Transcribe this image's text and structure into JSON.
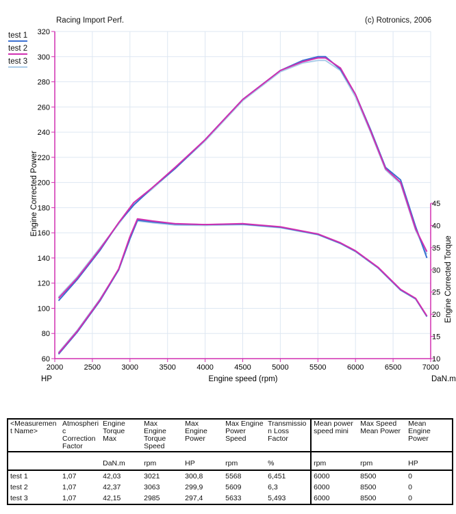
{
  "header": {
    "left": "Racing Import Perf.",
    "right": "(c) Rotronics, 2006"
  },
  "legend": [
    {
      "label": "test 1",
      "color": "#3a6fd1"
    },
    {
      "label": "test 2",
      "color": "#d12fb0"
    },
    {
      "label": "test 3",
      "color": "#a9cbe8"
    }
  ],
  "chart_data": {
    "type": "line",
    "xlabel": "Engine speed (rpm)",
    "ylabel": "Engine Corrected Power",
    "y2label": "Engine Corrected Torque",
    "left_unit": "HP",
    "right_unit": "DaN.m",
    "xlim": [
      2000,
      7000
    ],
    "ylim": [
      60,
      320
    ],
    "y2lim": [
      10,
      45
    ],
    "x_ticks": [
      "2000",
      "2500",
      "3000",
      "3500",
      "4000",
      "4500",
      "5000",
      "5500",
      "6000",
      "6500",
      "7000"
    ],
    "y_ticks": [
      "60",
      "80",
      "100",
      "120",
      "140",
      "160",
      "180",
      "200",
      "220",
      "240",
      "260",
      "280",
      "300",
      "320"
    ],
    "y2_ticks": [
      "10",
      "15",
      "20",
      "25",
      "30",
      "35",
      "40",
      "45"
    ],
    "grid": true,
    "power_series": [
      {
        "name": "test 1",
        "x": [
          2050,
          2300,
          2600,
          2850,
          3050,
          3300,
          3600,
          4000,
          4500,
          5000,
          5300,
          5500,
          5600,
          5800,
          6000,
          6200,
          6400,
          6600,
          6800,
          6950
        ],
        "y": [
          106,
          123,
          146,
          168,
          182,
          196,
          211,
          234,
          266,
          289,
          297,
          300,
          300,
          290,
          270,
          242,
          212,
          202,
          165,
          140
        ]
      },
      {
        "name": "test 2",
        "x": [
          2050,
          2300,
          2600,
          2850,
          3050,
          3300,
          3600,
          4000,
          4500,
          5000,
          5300,
          5500,
          5600,
          5800,
          6000,
          6200,
          6400,
          6600,
          6800,
          6950
        ],
        "y": [
          108,
          124,
          147,
          168,
          184,
          196,
          212,
          234,
          266,
          289,
          296,
          299,
          299,
          291,
          270,
          241,
          211,
          200,
          163,
          145
        ]
      },
      {
        "name": "test 3",
        "x": [
          2050,
          2300,
          2600,
          2850,
          3050,
          3300,
          3600,
          4000,
          4500,
          5000,
          5300,
          5500,
          5600,
          5800,
          6000,
          6200,
          6400,
          6600,
          6800,
          6950
        ],
        "y": [
          109,
          125,
          148,
          167,
          183,
          195,
          211,
          233,
          265,
          288,
          295,
          297,
          297,
          289,
          268,
          240,
          210,
          199,
          162,
          143
        ]
      }
    ],
    "torque_series": [
      {
        "name": "test 1",
        "x": [
          2050,
          2300,
          2600,
          2850,
          3000,
          3100,
          3300,
          3600,
          4000,
          4500,
          5000,
          5500,
          5800,
          6000,
          6300,
          6600,
          6800,
          6950
        ],
        "y": [
          11.0,
          16.0,
          23.0,
          30.0,
          37.0,
          41.2,
          40.8,
          40.3,
          40.2,
          40.3,
          39.6,
          38.0,
          36.0,
          34.2,
          30.5,
          25.5,
          23.5,
          19.5
        ]
      },
      {
        "name": "test 2",
        "x": [
          2050,
          2300,
          2600,
          2850,
          3000,
          3100,
          3300,
          3600,
          4000,
          4500,
          5000,
          5500,
          5800,
          6000,
          6300,
          6600,
          6800,
          6950
        ],
        "y": [
          11.2,
          16.2,
          23.2,
          30.2,
          37.5,
          41.5,
          41.0,
          40.4,
          40.2,
          40.4,
          39.7,
          38.1,
          36.1,
          34.3,
          30.6,
          25.6,
          23.6,
          19.6
        ]
      },
      {
        "name": "test 3",
        "x": [
          2050,
          2300,
          2600,
          2850,
          3000,
          3100,
          3300,
          3600,
          4000,
          4500,
          5000,
          5500,
          5800,
          6000,
          6300,
          6600,
          6800,
          6950
        ],
        "y": [
          11.4,
          16.4,
          23.4,
          30.0,
          37.0,
          41.0,
          40.6,
          40.1,
          40.0,
          40.2,
          39.5,
          37.9,
          35.9,
          34.1,
          30.4,
          25.4,
          23.4,
          19.4
        ]
      }
    ]
  },
  "table": {
    "headers": [
      "<Measuremen t Name>",
      "Atmospheri c Correction Factor",
      "Engine Torque Max",
      "Max Engine Torque Speed",
      "Max Engine Power",
      "Max Engine Power Speed",
      "Transmissio n Loss Factor",
      "Mean  power speed mini",
      "Max Speed Mean Power",
      "Mean Engine Power"
    ],
    "units": [
      "",
      "",
      "DaN.m",
      "rpm",
      "HP",
      "rpm",
      "%",
      "rpm",
      "rpm",
      "HP"
    ],
    "rows": [
      [
        "test 1",
        "1,07",
        "42,03",
        "3021",
        "300,8",
        "5568",
        "6,451",
        "6000",
        "8500",
        "0"
      ],
      [
        "test 2",
        "1,07",
        "42,37",
        "3063",
        "299,9",
        "5609",
        "6,3",
        "6000",
        "8500",
        "0"
      ],
      [
        "test 3",
        "1,07",
        "42,15",
        "2985",
        "297,4",
        "5633",
        "5,493",
        "6000",
        "8500",
        "0"
      ]
    ]
  }
}
